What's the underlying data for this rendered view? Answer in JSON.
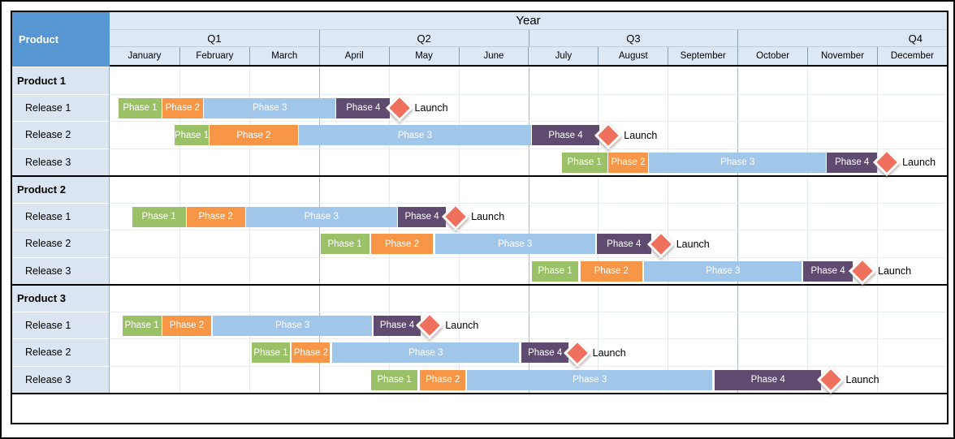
{
  "header": {
    "product_label": "Product",
    "year_label": "Year"
  },
  "chart_data": {
    "type": "bar",
    "variant": "gantt-roadmap",
    "title": "Year",
    "x_axis": {
      "unit": "month",
      "range": [
        0,
        12
      ],
      "quarters": [
        "Q1",
        "Q2",
        "Q3",
        "Q4"
      ],
      "months": [
        "January",
        "February",
        "March",
        "April",
        "May",
        "June",
        "July",
        "August",
        "September",
        "October",
        "November",
        "December"
      ]
    },
    "legend": null,
    "grid": "quarter-and-month-verticals",
    "launch_label": "Launch",
    "colors": {
      "phase1": "#9BC168",
      "phase2": "#F79646",
      "phase3": "#A0C6EA",
      "phase4": "#5E4B6F",
      "launch": "#F0705E",
      "corner_header": "#5596D3",
      "header_bg": "#DDE8F6",
      "row_label_bg": "#DAE5F1"
    },
    "products": [
      {
        "name": "Product 1",
        "releases": [
          {
            "name": "Release 1",
            "phases": [
              {
                "label": "Phase 1",
                "color": "phase1",
                "start": 0.12,
                "end": 0.74
              },
              {
                "label": "Phase 2",
                "color": "phase2",
                "start": 0.74,
                "end": 1.34
              },
              {
                "label": "Phase 3",
                "color": "phase3",
                "start": 1.34,
                "end": 3.24
              },
              {
                "label": "Phase 4",
                "color": "phase4",
                "start": 3.24,
                "end": 4.02
              }
            ],
            "launch_month": 4.15
          },
          {
            "name": "Release 2",
            "phases": [
              {
                "label": "Phase 1",
                "color": "phase1",
                "start": 0.92,
                "end": 1.42
              },
              {
                "label": "Phase 2",
                "color": "phase2",
                "start": 1.42,
                "end": 2.7
              },
              {
                "label": "Phase 3",
                "color": "phase3",
                "start": 2.7,
                "end": 6.04
              },
              {
                "label": "Phase 4",
                "color": "phase4",
                "start": 6.04,
                "end": 7.02
              }
            ],
            "launch_month": 7.15
          },
          {
            "name": "Release 3",
            "phases": [
              {
                "label": "Phase 1",
                "color": "phase1",
                "start": 6.47,
                "end": 7.13
              },
              {
                "label": "Phase 2",
                "color": "phase2",
                "start": 7.13,
                "end": 7.72
              },
              {
                "label": "Phase 3",
                "color": "phase3",
                "start": 7.72,
                "end": 10.27
              },
              {
                "label": "Phase 4",
                "color": "phase4",
                "start": 10.27,
                "end": 11.0
              }
            ],
            "launch_month": 11.14
          }
        ]
      },
      {
        "name": "Product 2",
        "releases": [
          {
            "name": "Release 1",
            "phases": [
              {
                "label": "Phase 1",
                "color": "phase1",
                "start": 0.31,
                "end": 1.09
              },
              {
                "label": "Phase 2",
                "color": "phase2",
                "start": 1.09,
                "end": 1.94
              },
              {
                "label": "Phase 3",
                "color": "phase3",
                "start": 1.94,
                "end": 4.12
              },
              {
                "label": "Phase 4",
                "color": "phase4",
                "start": 4.12,
                "end": 4.82
              }
            ],
            "launch_month": 4.96
          },
          {
            "name": "Release 2",
            "phases": [
              {
                "label": "Phase 1",
                "color": "phase1",
                "start": 3.01,
                "end": 3.72
              },
              {
                "label": "Phase 2",
                "color": "phase2",
                "start": 3.74,
                "end": 4.63
              },
              {
                "label": "Phase 3",
                "color": "phase3",
                "start": 4.65,
                "end": 6.96
              },
              {
                "label": "Phase 4",
                "color": "phase4",
                "start": 6.97,
                "end": 7.76
              }
            ],
            "launch_month": 7.9
          },
          {
            "name": "Release 3",
            "phases": [
              {
                "label": "Phase 1",
                "color": "phase1",
                "start": 6.04,
                "end": 6.72
              },
              {
                "label": "Phase 2",
                "color": "phase2",
                "start": 6.74,
                "end": 7.63
              },
              {
                "label": "Phase 3",
                "color": "phase3",
                "start": 7.65,
                "end": 9.92
              },
              {
                "label": "Phase 4",
                "color": "phase4",
                "start": 9.93,
                "end": 10.65
              }
            ],
            "launch_month": 10.79
          }
        ]
      },
      {
        "name": "Product 3",
        "releases": [
          {
            "name": "Release 1",
            "phases": [
              {
                "label": "Phase 1",
                "color": "phase1",
                "start": 0.17,
                "end": 0.74
              },
              {
                "label": "Phase 2",
                "color": "phase2",
                "start": 0.75,
                "end": 1.45
              },
              {
                "label": "Phase 3",
                "color": "phase3",
                "start": 1.47,
                "end": 3.76
              },
              {
                "label": "Phase 4",
                "color": "phase4",
                "start": 3.77,
                "end": 4.46
              }
            ],
            "launch_month": 4.59
          },
          {
            "name": "Release 2",
            "phases": [
              {
                "label": "Phase 1",
                "color": "phase1",
                "start": 2.03,
                "end": 2.58
              },
              {
                "label": "Phase 2",
                "color": "phase2",
                "start": 2.6,
                "end": 3.16
              },
              {
                "label": "Phase 3",
                "color": "phase3",
                "start": 3.18,
                "end": 5.87
              },
              {
                "label": "Phase 4",
                "color": "phase4",
                "start": 5.89,
                "end": 6.58
              }
            ],
            "launch_month": 6.7
          },
          {
            "name": "Release 3",
            "phases": [
              {
                "label": "Phase 1",
                "color": "phase1",
                "start": 3.74,
                "end": 4.41
              },
              {
                "label": "Phase 2",
                "color": "phase2",
                "start": 4.44,
                "end": 5.1
              },
              {
                "label": "Phase 3",
                "color": "phase3",
                "start": 5.11,
                "end": 8.64
              },
              {
                "label": "Phase 4",
                "color": "phase4",
                "start": 8.66,
                "end": 10.2
              }
            ],
            "launch_month": 10.33
          }
        ]
      }
    ]
  }
}
